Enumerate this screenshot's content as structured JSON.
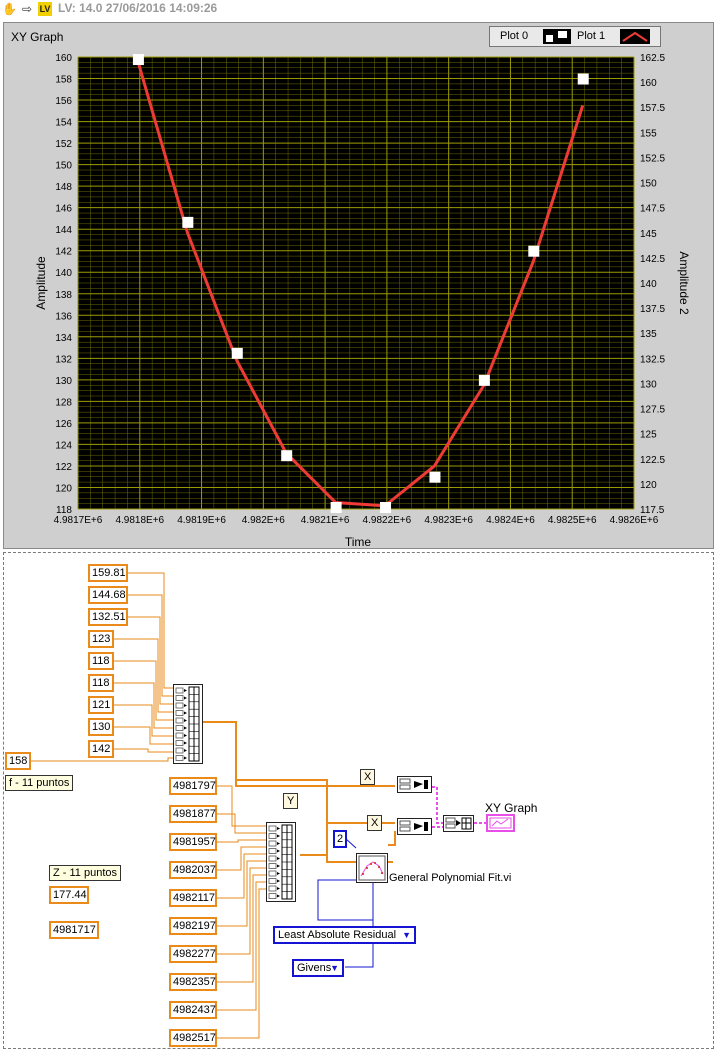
{
  "toolbar": {
    "title": "LV: 14.0 27/06/2016 14:09:26"
  },
  "panel": {
    "title": "XY Graph",
    "legend": {
      "plot0": "Plot 0",
      "plot1": "Plot 1"
    }
  },
  "chart_data": {
    "type": "scatter",
    "title": "XY Graph",
    "xlabel": "Time",
    "ylabel": "Amplitude",
    "y2label": "Amplitude 2",
    "xlim": [
      4981700,
      4982600
    ],
    "ylim": [
      118,
      160
    ],
    "y2lim": [
      117.5,
      162.5
    ],
    "x_ticks": [
      "4.9817E+6",
      "4.9818E+6",
      "4.9819E+6",
      "4.982E+6",
      "4.9821E+6",
      "4.9822E+6",
      "4.9823E+6",
      "4.9824E+6",
      "4.9825E+6",
      "4.9826E+6"
    ],
    "y_ticks": [
      "118",
      "120",
      "122",
      "124",
      "126",
      "128",
      "130",
      "132",
      "134",
      "136",
      "138",
      "140",
      "142",
      "144",
      "146",
      "148",
      "150",
      "152",
      "154",
      "156",
      "158",
      "160"
    ],
    "y2_ticks": [
      "117.5",
      "120",
      "122.5",
      "125",
      "127.5",
      "130",
      "132.5",
      "135",
      "137.5",
      "140",
      "142.5",
      "145",
      "147.5",
      "150",
      "152.5",
      "155",
      "157.5",
      "160",
      "162.5"
    ],
    "grid": true,
    "series": [
      {
        "name": "Plot 0",
        "x": [
          4981797,
          4981877,
          4981957,
          4982037,
          4982117,
          4982197,
          4982277,
          4982357,
          4982437,
          4982517
        ],
        "y": [
          159.81,
          144.68,
          132.51,
          123,
          118,
          118,
          121,
          130,
          142,
          158
        ],
        "marker": "square",
        "color": "#ffffff"
      },
      {
        "name": "Plot 1",
        "x": [
          4981797,
          4981877,
          4981957,
          4982037,
          4982117,
          4982197,
          4982277,
          4982357,
          4982437,
          4982517
        ],
        "y": [
          159.6,
          143.7,
          131.8,
          123.2,
          118.6,
          118.3,
          122,
          129.5,
          141,
          155.5
        ],
        "line": true,
        "color": "#ef3b36"
      }
    ],
    "colors": {
      "plot_bg": "#000000",
      "grid": "#9a9a00",
      "line": "#ef3b36"
    }
  },
  "diagram": {
    "f_constants": [
      "159.81",
      "144.68",
      "132.51",
      "123",
      "118",
      "118",
      "121",
      "130",
      "142",
      "158"
    ],
    "x_constants": [
      "4981797",
      "4981877",
      "4981957",
      "4982037",
      "4982117",
      "4982197",
      "4982277",
      "4982357",
      "4982437",
      "4982517"
    ],
    "label_f": "f - 11 puntos",
    "label_z": "Z - 11 puntos",
    "z_val1": "177.44",
    "z_val2": "4981717",
    "x_label1": "X",
    "x_label2": "X",
    "y_label": "Y",
    "order_const": "2",
    "xy_graph_label": "XY Graph",
    "vi_label": "General Polynomial Fit.vi",
    "method_ring": "Least Absolute Residual",
    "algo_ring": "Givens"
  }
}
